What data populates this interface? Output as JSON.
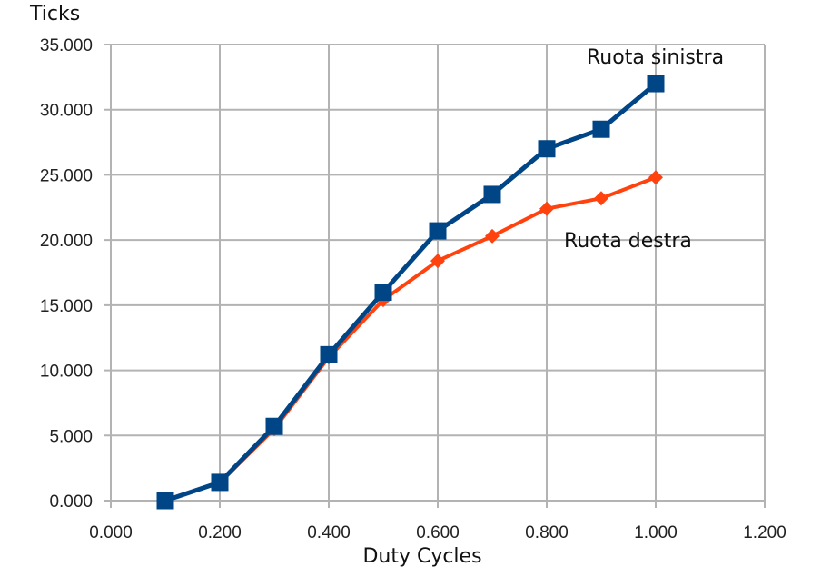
{
  "chart_data": {
    "type": "line",
    "title": "",
    "xlabel": "Duty Cycles",
    "ylabel": "Ticks",
    "xlim": [
      0,
      1.2
    ],
    "ylim": [
      0,
      35000
    ],
    "xticks": [
      0,
      0.2,
      0.4,
      0.6,
      0.8,
      1.0,
      1.2
    ],
    "xtick_labels": [
      "0.000",
      "0.200",
      "0.400",
      "0.600",
      "0.800",
      "1.000",
      "1.200"
    ],
    "yticks": [
      0,
      5000,
      10000,
      15000,
      20000,
      25000,
      30000,
      35000
    ],
    "ytick_labels": [
      "0.000",
      "5.000",
      "10.000",
      "15.000",
      "20.000",
      "25.000",
      "30.000",
      "35.000"
    ],
    "grid": true,
    "legend": "inline labels next to series",
    "x": [
      0.1,
      0.2,
      0.3,
      0.4,
      0.5,
      0.6,
      0.7,
      0.8,
      0.9,
      1.0
    ],
    "series": [
      {
        "name": "Ruota sinistra",
        "color": "#004586",
        "marker": "square",
        "values": [
          0,
          1400,
          5700,
          11200,
          16000,
          20700,
          23500,
          27000,
          28500,
          32000
        ]
      },
      {
        "name": "Ruota destra",
        "color": "#ff420e",
        "marker": "diamond",
        "values": [
          0,
          1400,
          5500,
          11000,
          15400,
          18400,
          20300,
          22400,
          23200,
          24800
        ]
      }
    ],
    "grid_color": "#b3b3b3"
  }
}
